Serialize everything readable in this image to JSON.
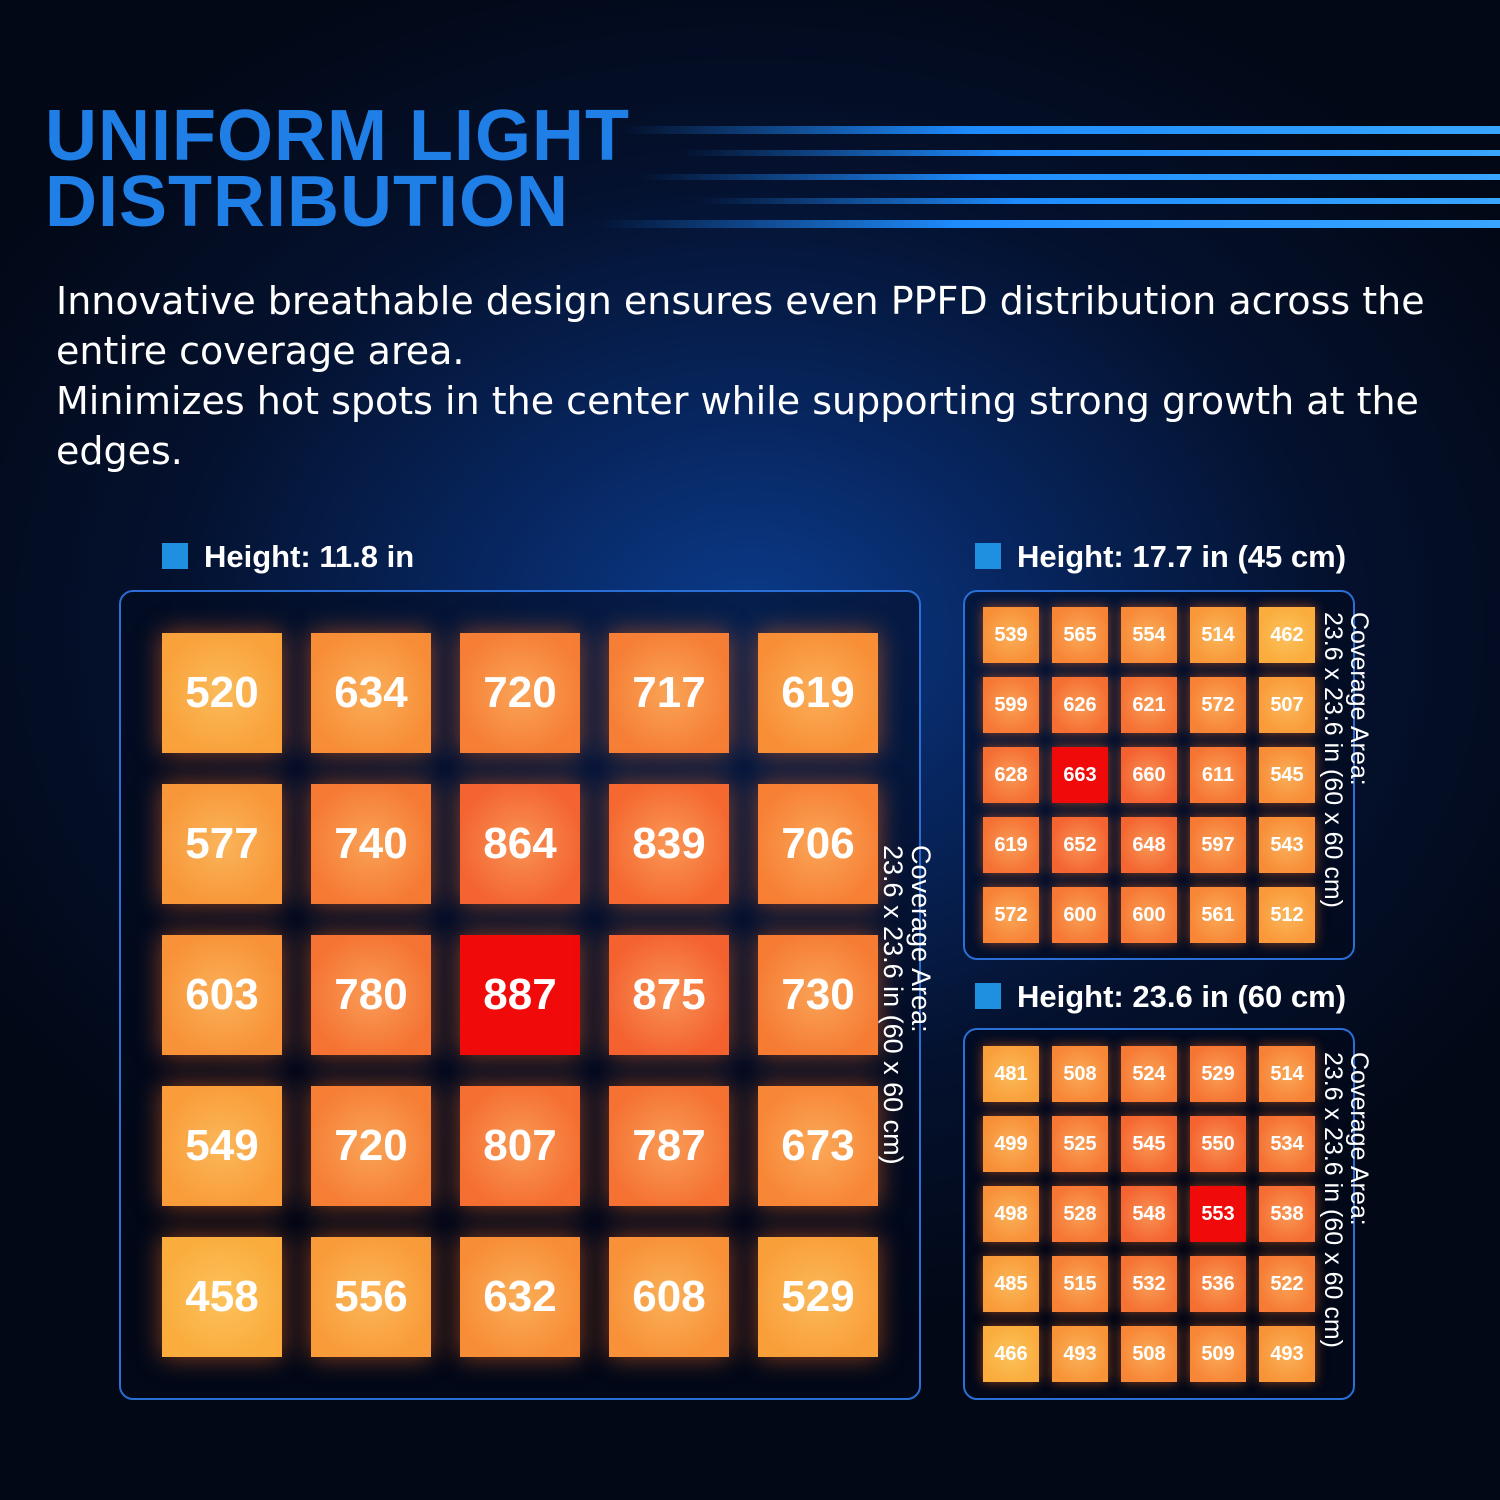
{
  "header": {
    "title_line1": "UNIFORM LIGHT",
    "title_line2": "DISTRIBUTION"
  },
  "description": [
    "Innovative breathable design ensures even PPFD distribution across the entire coverage area.",
    "Minimizes hot spots in the center while supporting strong growth at the edges."
  ],
  "panels": [
    {
      "label": "Height: 11.8 in",
      "note_line1": "Coverage Area:",
      "note_line2": "23.6 x 23.6 in (60 x 60 cm)",
      "grid": [
        [
          520,
          634,
          720,
          717,
          619
        ],
        [
          577,
          740,
          864,
          839,
          706
        ],
        [
          603,
          780,
          887,
          875,
          730
        ],
        [
          549,
          720,
          807,
          787,
          673
        ],
        [
          458,
          556,
          632,
          608,
          529
        ]
      ]
    },
    {
      "label": "Height: 17.7 in (45 cm)",
      "note_line1": "Coverage Area:",
      "note_line2": "23.6 x 23.6 in (60 x 60 cm)",
      "grid": [
        [
          539,
          565,
          554,
          514,
          462
        ],
        [
          599,
          626,
          621,
          572,
          507
        ],
        [
          628,
          663,
          660,
          611,
          545
        ],
        [
          619,
          652,
          648,
          597,
          543
        ],
        [
          572,
          600,
          600,
          561,
          512
        ]
      ]
    },
    {
      "label": "Height: 23.6 in (60 cm)",
      "note_line1": "Coverage Area:",
      "note_line2": "23.6 x 23.6 in (60 x 60 cm)",
      "grid": [
        [
          481,
          508,
          524,
          529,
          514
        ],
        [
          499,
          525,
          545,
          550,
          534
        ],
        [
          498,
          528,
          548,
          553,
          538
        ],
        [
          485,
          515,
          532,
          536,
          522
        ],
        [
          466,
          493,
          508,
          509,
          493
        ]
      ]
    }
  ]
}
